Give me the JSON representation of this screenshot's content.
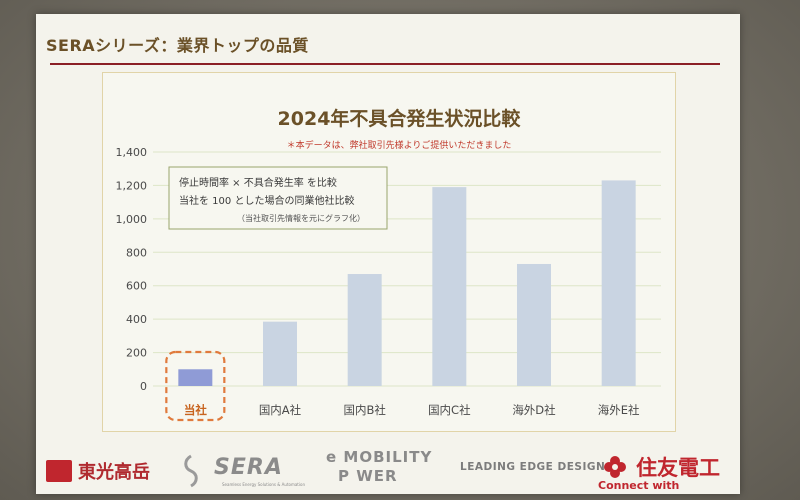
{
  "slide": {
    "header": "SERAシリーズ：業界トップの品質"
  },
  "chart_data": {
    "type": "bar",
    "title": "2024年不具合発生状況比較",
    "subtitle": "＊本データは、弊社取引先様よりご提供いただきました",
    "categories": [
      "当社",
      "国内A社",
      "国内B社",
      "国内C社",
      "海外D社",
      "海外E社"
    ],
    "values": [
      100,
      385,
      670,
      1190,
      730,
      1230
    ],
    "y_ticks": [
      "0",
      "200",
      "400",
      "600",
      "800",
      "1,000",
      "1,200",
      "1,400"
    ],
    "ylim": [
      0,
      1400
    ],
    "grid": true,
    "highlight_index": 0,
    "annotation": {
      "line1": "停止時間率 × 不具合発生率 を比較",
      "line2": "当社を 100 とした場合の同業他社比較",
      "note": "（当社取引先情報を元にグラフ化）"
    },
    "colors": {
      "bar": "#c9d4e2",
      "highlight_bar": "#8f9bd6",
      "highlight_box": "#e07a3c",
      "title": "#6b5128",
      "subtitle": "#c0392b",
      "grid": "#dde6c7",
      "tick": "#4a4a4a"
    }
  },
  "footer": {
    "logo_toko": "東光高岳",
    "logo_sera": "SERA",
    "logo_sera_sub": "Seamless Energy Solutions & Automation",
    "logo_emobility_line1": "e MOBILITY",
    "logo_emobility_line2": "P WER",
    "logo_leading": "LEADING EDGE DESIGN",
    "logo_sumitomo": "住友電工",
    "logo_sumitomo_tagline": "Connect with Innovation"
  }
}
